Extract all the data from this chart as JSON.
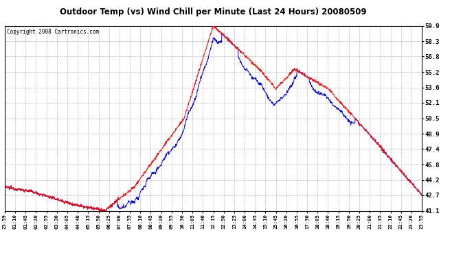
{
  "title": "Outdoor Temp (vs) Wind Chill per Minute (Last 24 Hours) 20080509",
  "copyright": "Copyright 2008 Cartronics.com",
  "bg_color": "#ffffff",
  "plot_bg_color": "#ffffff",
  "grid_color": "#aaaaaa",
  "line_color_temp": "#ff0000",
  "line_color_wind": "#0000ff",
  "y_ticks": [
    41.1,
    42.7,
    44.2,
    45.8,
    47.4,
    48.9,
    50.5,
    52.1,
    53.6,
    55.2,
    56.8,
    58.3,
    59.9
  ],
  "ylim": [
    41.1,
    59.9
  ],
  "x_labels": [
    "23:59",
    "01:10",
    "01:45",
    "02:20",
    "02:55",
    "03:30",
    "04:05",
    "04:40",
    "05:15",
    "05:50",
    "06:25",
    "07:00",
    "07:35",
    "08:10",
    "08:45",
    "09:20",
    "09:55",
    "10:30",
    "11:05",
    "11:40",
    "12:15",
    "12:50",
    "13:25",
    "14:00",
    "14:35",
    "15:10",
    "15:45",
    "16:20",
    "16:55",
    "17:30",
    "18:05",
    "18:40",
    "19:15",
    "19:50",
    "20:25",
    "21:00",
    "21:35",
    "22:10",
    "22:45",
    "23:20",
    "23:55"
  ],
  "n_points": 1440
}
